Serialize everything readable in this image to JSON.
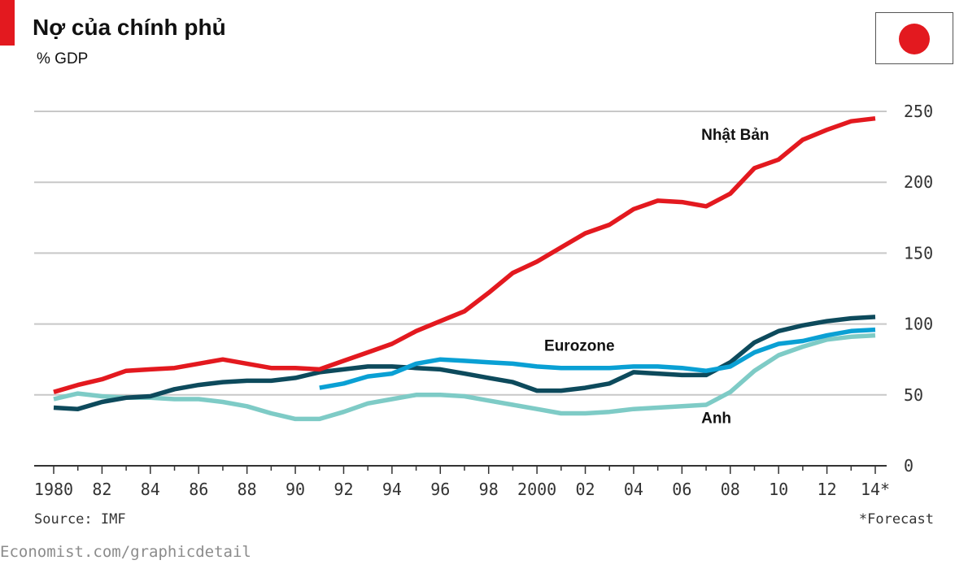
{
  "header": {
    "title": "Nợ của chính phủ",
    "subtitle": "% GDP"
  },
  "flag": {
    "icon": "japan-flag-icon",
    "disc_color": "#e3191f"
  },
  "accent_color": "#e3191f",
  "footer": {
    "source": "Source: IMF",
    "footnote": "*Forecast",
    "credit": "Economist.com/graphicdetail"
  },
  "chart_data": {
    "type": "line",
    "title": "Nợ của chính phủ",
    "subtitle": "% GDP",
    "xlabel": "",
    "ylabel": "% GDP",
    "xlim": [
      1980,
      2014
    ],
    "ylim": [
      0,
      250
    ],
    "y_ticks": [
      0,
      50,
      100,
      150,
      200,
      250
    ],
    "x_ticks": [
      1980,
      1982,
      1984,
      1986,
      1988,
      1990,
      1992,
      1994,
      1996,
      1998,
      2000,
      2002,
      2004,
      2006,
      2008,
      2010,
      2012,
      2014
    ],
    "x_tick_labels": [
      "1980",
      "82",
      "84",
      "86",
      "88",
      "90",
      "92",
      "94",
      "96",
      "98",
      "2000",
      "02",
      "04",
      "06",
      "08",
      "10",
      "12",
      "14*"
    ],
    "grid": true,
    "y_axis_position": "right",
    "series": [
      {
        "name": "Nhật Bản",
        "color": "#e3191f",
        "x": [
          1980,
          1981,
          1982,
          1983,
          1984,
          1985,
          1986,
          1987,
          1988,
          1989,
          1990,
          1991,
          1992,
          1993,
          1994,
          1995,
          1996,
          1997,
          1998,
          1999,
          2000,
          2001,
          2002,
          2003,
          2004,
          2005,
          2006,
          2007,
          2008,
          2009,
          2010,
          2011,
          2012,
          2013,
          2014
        ],
        "values": [
          52,
          57,
          61,
          67,
          68,
          69,
          72,
          75,
          72,
          69,
          69,
          68,
          74,
          80,
          86,
          95,
          102,
          109,
          122,
          136,
          144,
          154,
          164,
          170,
          181,
          187,
          186,
          183,
          192,
          210,
          216,
          230,
          237,
          243,
          245
        ]
      },
      {
        "name": "Eurozone",
        "color": "#0aa0d4",
        "x": [
          1991,
          1992,
          1993,
          1994,
          1995,
          1996,
          1997,
          1998,
          1999,
          2000,
          2001,
          2002,
          2003,
          2004,
          2005,
          2006,
          2007,
          2008,
          2009,
          2010,
          2011,
          2012,
          2013,
          2014
        ],
        "values": [
          55,
          58,
          63,
          65,
          72,
          75,
          74,
          73,
          72,
          70,
          69,
          69,
          69,
          70,
          70,
          69,
          67,
          70,
          80,
          86,
          88,
          92,
          95,
          96
        ]
      },
      {
        "name": "",
        "color": "#0d4a5c",
        "x": [
          1980,
          1981,
          1982,
          1983,
          1984,
          1985,
          1986,
          1987,
          1988,
          1989,
          1990,
          1991,
          1992,
          1993,
          1994,
          1995,
          1996,
          1997,
          1998,
          1999,
          2000,
          2001,
          2002,
          2003,
          2004,
          2005,
          2006,
          2007,
          2008,
          2009,
          2010,
          2011,
          2012,
          2013,
          2014
        ],
        "values": [
          41,
          40,
          45,
          48,
          49,
          54,
          57,
          59,
          60,
          60,
          62,
          66,
          68,
          70,
          70,
          69,
          68,
          65,
          62,
          59,
          53,
          53,
          55,
          58,
          66,
          65,
          64,
          64,
          73,
          87,
          95,
          99,
          102,
          104,
          105
        ]
      },
      {
        "name": "Anh",
        "color": "#7ecbc6",
        "x": [
          1980,
          1981,
          1982,
          1983,
          1984,
          1985,
          1986,
          1987,
          1988,
          1989,
          1990,
          1991,
          1992,
          1993,
          1994,
          1995,
          1996,
          1997,
          1998,
          1999,
          2000,
          2001,
          2002,
          2003,
          2004,
          2005,
          2006,
          2007,
          2008,
          2009,
          2010,
          2011,
          2012,
          2013,
          2014
        ],
        "values": [
          47,
          51,
          49,
          48,
          48,
          47,
          47,
          45,
          42,
          37,
          33,
          33,
          38,
          44,
          47,
          50,
          50,
          49,
          46,
          43,
          40,
          37,
          37,
          38,
          40,
          41,
          42,
          43,
          52,
          67,
          78,
          84,
          89,
          91,
          92
        ]
      }
    ],
    "annotations": [
      {
        "text": "Nhật Bản",
        "x": 2006.8,
        "y": 230
      },
      {
        "text": "Eurozone",
        "x": 2000.3,
        "y": 81
      },
      {
        "text": "Anh",
        "x": 2006.8,
        "y": 30
      }
    ]
  }
}
